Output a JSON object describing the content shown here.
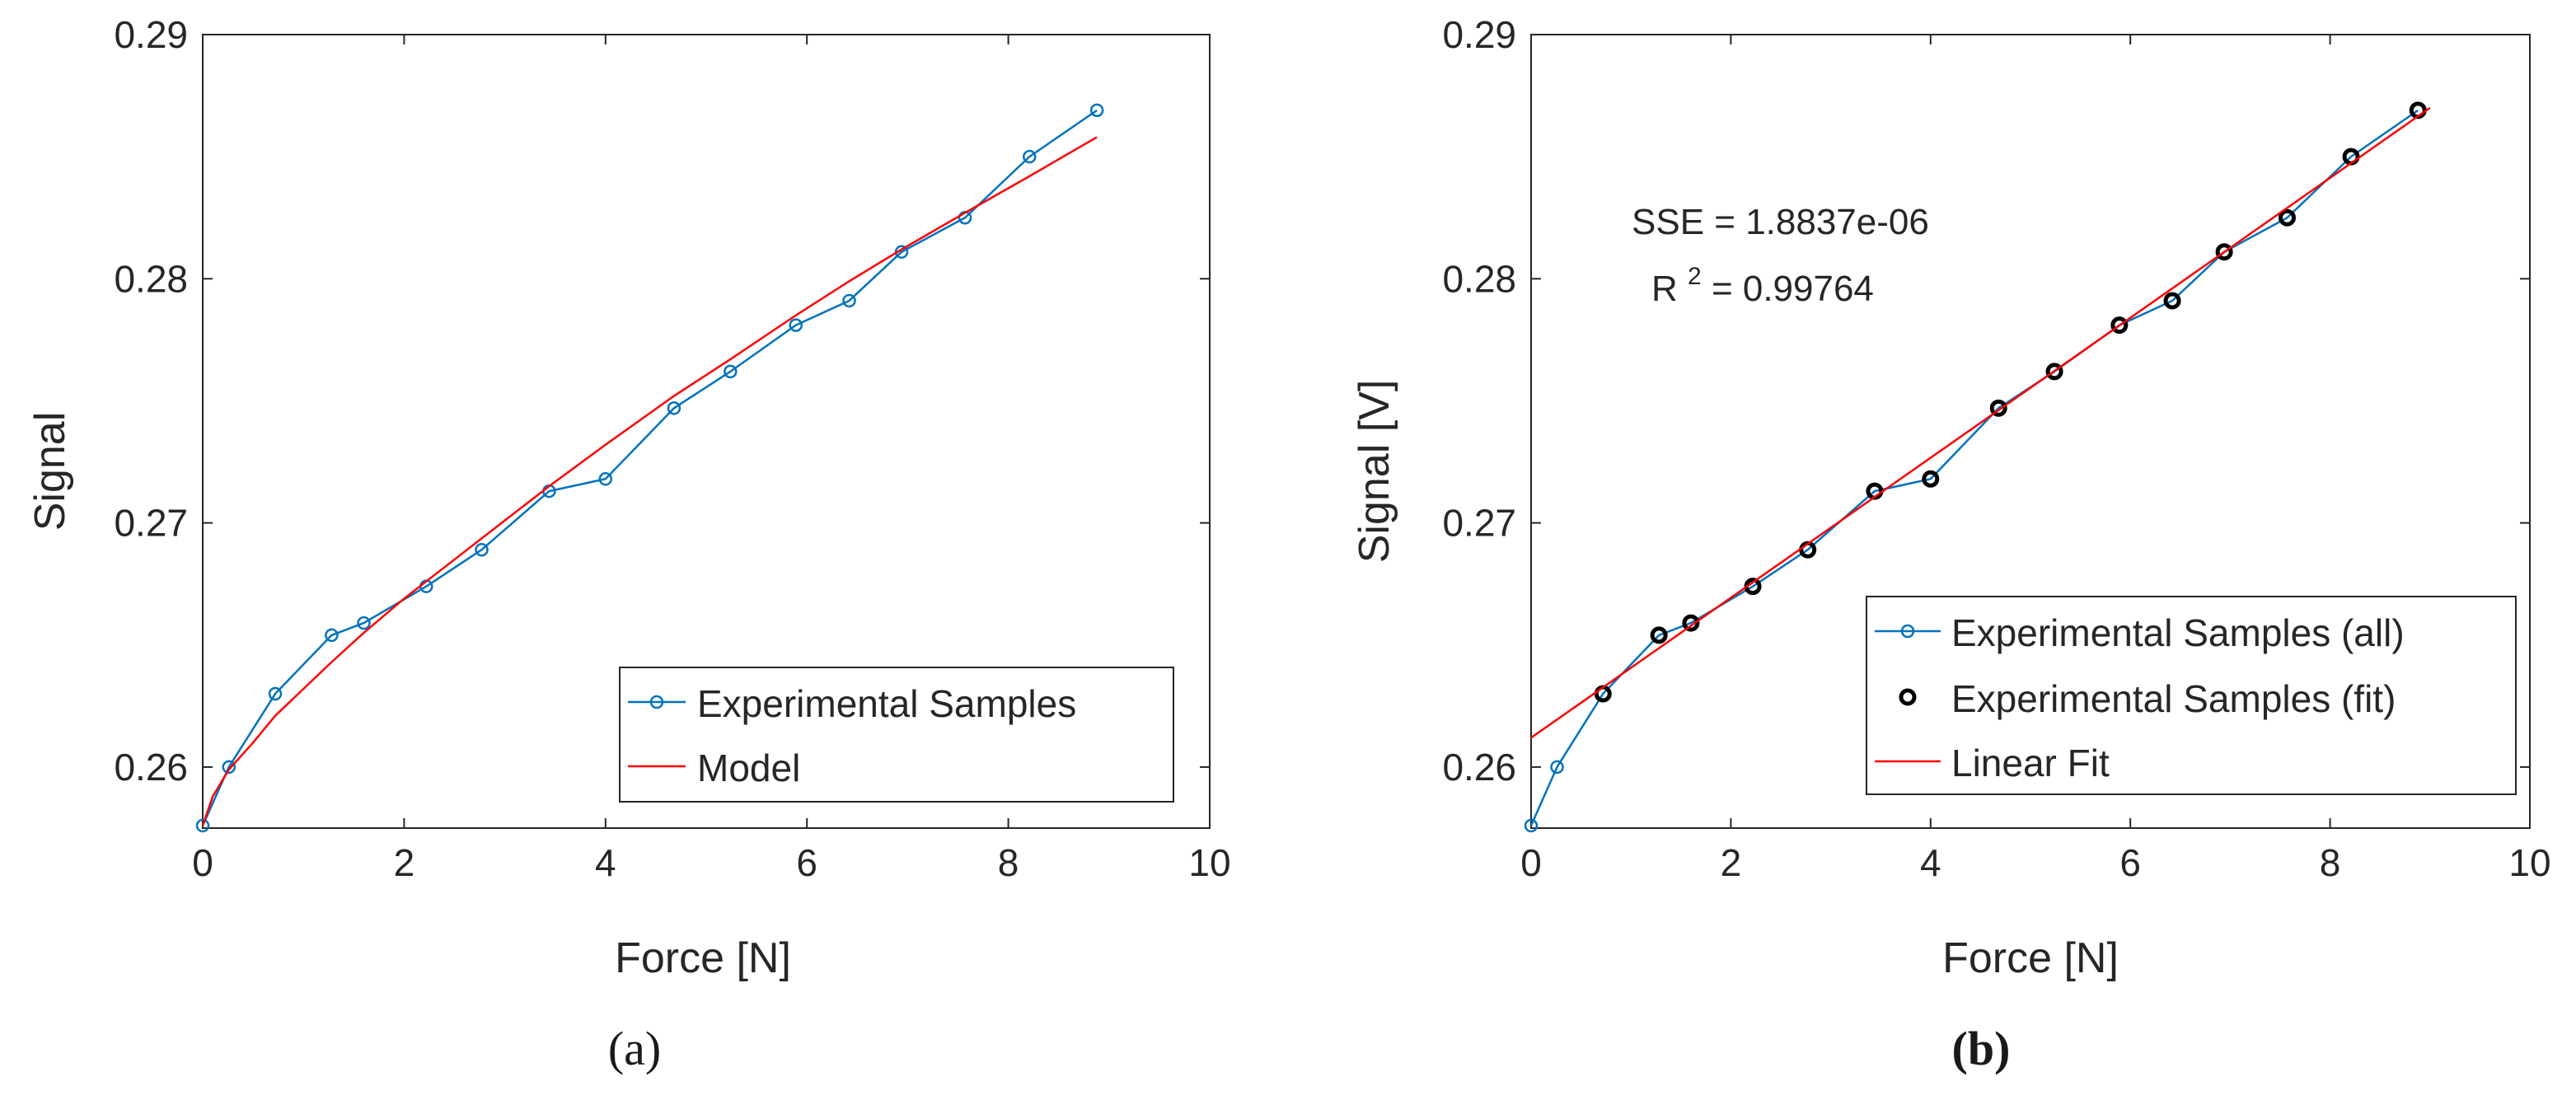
{
  "figure": {
    "caption_a": "(a)",
    "caption_b": "(b)",
    "colors": {
      "series_blue": "#0072bd",
      "model_red": "#ff0000",
      "fit_marker": "#000000",
      "axis": "#262626"
    }
  },
  "chart_data": [
    {
      "type": "line",
      "panel": "a",
      "title": "",
      "xlabel": "Force [N]",
      "ylabel": "Signal",
      "xlim": [
        0,
        10
      ],
      "ylim": [
        0.2575,
        0.29
      ],
      "xticks": [
        0,
        2,
        4,
        6,
        8,
        10
      ],
      "xtick_labels": [
        "0",
        "2",
        "4",
        "6",
        "8",
        "10"
      ],
      "yticks": [
        0.26,
        0.27,
        0.28,
        0.29
      ],
      "ytick_labels": [
        "0.26",
        "0.27",
        "0.28",
        "0.29"
      ],
      "grid": false,
      "legend_position": "bottom-right",
      "series": [
        {
          "name": "Experimental Samples",
          "style": "line-circle-marker",
          "color": "#0072bd",
          "x": [
            0,
            0.26,
            0.72,
            1.28,
            1.6,
            2.22,
            2.77,
            3.44,
            4.0,
            4.68,
            5.24,
            5.89,
            6.42,
            6.94,
            7.57,
            8.21,
            8.88
          ],
          "y": [
            0.2576,
            0.26,
            0.263,
            0.2654,
            0.2659,
            0.2674,
            0.2689,
            0.2713,
            0.2718,
            0.2747,
            0.2762,
            0.2781,
            0.2791,
            0.2811,
            0.2825,
            0.285,
            0.2869
          ]
        },
        {
          "name": "Model",
          "style": "line",
          "color": "#ff0000",
          "x": [
            0,
            0.1,
            0.26,
            0.5,
            0.72,
            1.0,
            1.28,
            1.6,
            2.0,
            2.5,
            3.0,
            3.44,
            4.0,
            4.68,
            5.24,
            5.89,
            6.42,
            6.94,
            7.57,
            8.21,
            8.88
          ],
          "y": [
            0.2576,
            0.2588,
            0.2599,
            0.261,
            0.2621,
            0.2632,
            0.2643,
            0.2655,
            0.2669,
            0.2685,
            0.2701,
            0.2715,
            0.2732,
            0.2752,
            0.2767,
            0.2785,
            0.2799,
            0.2812,
            0.2827,
            0.2842,
            0.2858
          ]
        }
      ]
    },
    {
      "type": "line",
      "panel": "b",
      "title": "",
      "xlabel": "Force [N]",
      "ylabel": "Signal [V]",
      "xlim": [
        0,
        10
      ],
      "ylim": [
        0.2575,
        0.29
      ],
      "xticks": [
        0,
        2,
        4,
        6,
        8,
        10
      ],
      "xtick_labels": [
        "0",
        "2",
        "4",
        "6",
        "8",
        "10"
      ],
      "yticks": [
        0.26,
        0.27,
        0.28,
        0.29
      ],
      "ytick_labels": [
        "0.26",
        "0.27",
        "0.28",
        "0.29"
      ],
      "grid": false,
      "legend_position": "bottom-right",
      "annotations": {
        "sse": "SSE = 1.8837e-06",
        "r2_prefix": "R",
        "r2_exponent": "2",
        "r2_value": " = 0.99764"
      },
      "series": [
        {
          "name": "Experimental Samples (all)",
          "style": "line-circle-marker",
          "color": "#0072bd",
          "x": [
            0,
            0.26,
            0.72,
            1.28,
            1.6,
            2.22,
            2.77,
            3.44,
            4.0,
            4.68,
            5.24,
            5.89,
            6.42,
            6.94,
            7.57,
            8.21,
            8.88
          ],
          "y": [
            0.2576,
            0.26,
            0.263,
            0.2654,
            0.2659,
            0.2674,
            0.2689,
            0.2713,
            0.2718,
            0.2747,
            0.2762,
            0.2781,
            0.2791,
            0.2811,
            0.2825,
            0.285,
            0.2869
          ]
        },
        {
          "name": "Experimental Samples (fit)",
          "style": "circle-marker",
          "color": "#000000",
          "x": [
            0.72,
            1.28,
            1.6,
            2.22,
            2.77,
            3.44,
            4.0,
            4.68,
            5.24,
            5.89,
            6.42,
            6.94,
            7.57,
            8.21,
            8.88
          ],
          "y": [
            0.263,
            0.2654,
            0.2659,
            0.2674,
            0.2689,
            0.2713,
            0.2718,
            0.2747,
            0.2762,
            0.2781,
            0.2791,
            0.2811,
            0.2825,
            0.285,
            0.2869
          ]
        },
        {
          "name": "Linear Fit",
          "style": "line",
          "color": "#ff0000",
          "x": [
            0,
            9.0
          ],
          "y": [
            0.2612,
            0.287
          ]
        }
      ]
    }
  ]
}
